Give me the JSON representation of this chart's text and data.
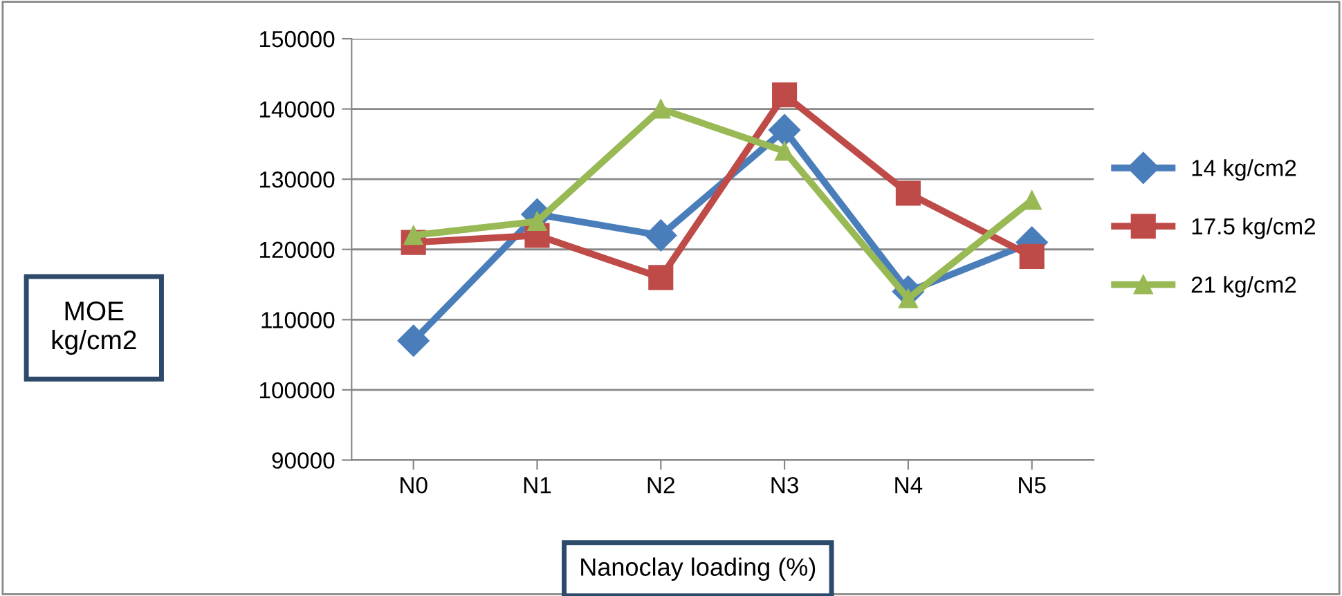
{
  "chart_data": {
    "type": "line",
    "xlabel": "Nanoclay loading (%)",
    "ylabel": "MOE\nkg/cm2",
    "categories": [
      "N0",
      "N1",
      "N2",
      "N3",
      "N4",
      "N5"
    ],
    "series": [
      {
        "name": "14 kg/cm2",
        "color": "#4a7ebb",
        "marker": "diamond",
        "values": [
          107000,
          125000,
          122000,
          137000,
          114000,
          121000
        ]
      },
      {
        "name": "17.5 kg/cm2",
        "color": "#be4b48",
        "marker": "square",
        "values": [
          121000,
          122000,
          116000,
          142000,
          128000,
          119000
        ]
      },
      {
        "name": "21 kg/cm2",
        "color": "#98b954",
        "marker": "triangle",
        "values": [
          122000,
          124000,
          140000,
          134000,
          113000,
          127000
        ]
      }
    ],
    "ylim": [
      90000,
      150000
    ],
    "yticks": [
      90000,
      100000,
      110000,
      120000,
      130000,
      140000,
      150000
    ],
    "grid": "y",
    "legend": "right",
    "line_style": "solid"
  }
}
